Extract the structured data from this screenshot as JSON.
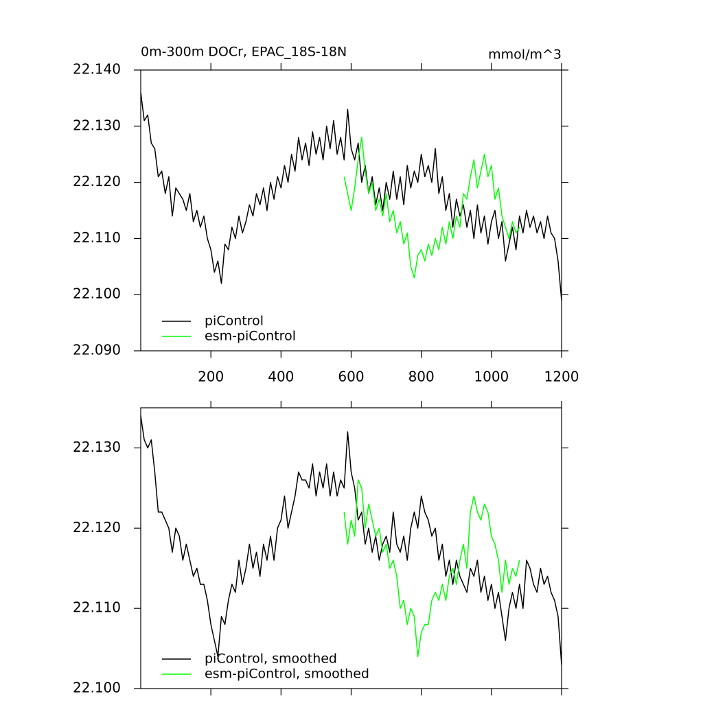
{
  "chart_data": [
    {
      "type": "line",
      "title": "0m-300m DOCr, EPAC_18S-18N",
      "units": "mmol/m^3",
      "x": [
        0,
        10,
        20,
        30,
        40,
        50,
        60,
        70,
        80,
        90,
        100,
        110,
        120,
        130,
        140,
        150,
        160,
        170,
        180,
        190,
        200,
        210,
        220,
        230,
        240,
        250,
        260,
        270,
        280,
        290,
        300,
        310,
        320,
        330,
        340,
        350,
        360,
        370,
        380,
        390,
        400,
        410,
        420,
        430,
        440,
        450,
        460,
        470,
        480,
        490,
        500,
        510,
        520,
        530,
        540,
        550,
        560,
        570,
        580,
        590,
        600,
        610,
        620,
        630,
        640,
        650,
        660,
        670,
        680,
        690,
        700,
        710,
        720,
        730,
        740,
        750,
        760,
        770,
        780,
        790,
        800,
        810,
        820,
        830,
        840,
        850,
        860,
        870,
        880,
        890,
        900,
        910,
        920,
        930,
        940,
        950,
        960,
        970,
        980,
        990,
        1000,
        1010,
        1020,
        1030,
        1040,
        1050,
        1060,
        1070,
        1080,
        1090,
        1100,
        1110,
        1120,
        1130,
        1140,
        1150,
        1160,
        1170,
        1180,
        1190,
        1200
      ],
      "series": [
        {
          "name": "piControl",
          "color": "#000000",
          "values": [
            22.136,
            22.131,
            22.132,
            22.127,
            22.126,
            22.121,
            22.122,
            22.118,
            22.121,
            22.114,
            22.119,
            22.118,
            22.117,
            22.115,
            22.118,
            22.113,
            22.115,
            22.112,
            22.114,
            22.11,
            22.108,
            22.104,
            22.106,
            22.102,
            22.109,
            22.108,
            22.112,
            22.11,
            22.114,
            22.111,
            22.113,
            22.116,
            22.114,
            22.118,
            22.116,
            22.119,
            22.115,
            22.12,
            22.117,
            22.121,
            22.119,
            22.123,
            22.12,
            22.125,
            22.122,
            22.128,
            22.124,
            22.127,
            22.123,
            22.129,
            22.125,
            22.128,
            22.124,
            22.13,
            22.126,
            22.131,
            22.125,
            22.128,
            22.124,
            22.133,
            22.126,
            22.124,
            22.127,
            22.12,
            22.123,
            22.118,
            22.121,
            22.116,
            22.119,
            22.115,
            22.12,
            22.117,
            22.122,
            22.117,
            22.121,
            22.116,
            22.123,
            22.119,
            22.122,
            22.12,
            22.125,
            22.121,
            22.123,
            22.12,
            22.126,
            22.118,
            22.121,
            22.115,
            22.118,
            22.112,
            22.117,
            22.114,
            22.116,
            22.112,
            22.115,
            22.11,
            22.116,
            22.111,
            22.114,
            22.109,
            22.113,
            22.115,
            22.11,
            22.113,
            22.106,
            22.109,
            22.112,
            22.108,
            22.114,
            22.111,
            22.115,
            22.112,
            22.114,
            22.111,
            22.113,
            22.11,
            22.114,
            22.111,
            22.11,
            22.106,
            22.099
          ]
        },
        {
          "name": "esm-piControl",
          "color": "#00ff00",
          "values": [
            null,
            null,
            null,
            null,
            null,
            null,
            null,
            null,
            null,
            null,
            null,
            null,
            null,
            null,
            null,
            null,
            null,
            null,
            null,
            null,
            null,
            null,
            null,
            null,
            null,
            null,
            null,
            null,
            null,
            null,
            null,
            null,
            null,
            null,
            null,
            null,
            null,
            null,
            null,
            null,
            null,
            null,
            null,
            null,
            null,
            null,
            null,
            null,
            null,
            null,
            null,
            null,
            null,
            null,
            null,
            null,
            null,
            null,
            22.121,
            22.118,
            22.115,
            22.119,
            22.124,
            22.128,
            22.122,
            22.118,
            22.12,
            22.115,
            22.117,
            22.114,
            22.118,
            22.113,
            22.115,
            22.111,
            22.113,
            22.109,
            22.111,
            22.105,
            22.103,
            22.107,
            22.108,
            22.106,
            22.109,
            22.107,
            22.11,
            22.108,
            22.112,
            22.109,
            22.113,
            22.11,
            22.114,
            22.112,
            22.118,
            22.117,
            22.121,
            22.124,
            22.119,
            22.122,
            22.125,
            22.121,
            22.123,
            22.117,
            22.119,
            22.114,
            22.112,
            22.11,
            22.113,
            22.111,
            22.112,
            null,
            null,
            null,
            null,
            null,
            null,
            null,
            null,
            null,
            null,
            null,
            null
          ]
        }
      ],
      "xlim": [
        0,
        1200
      ],
      "xticks": [
        200,
        400,
        600,
        800,
        1000,
        1200
      ],
      "ylim": [
        22.09,
        22.14
      ],
      "yticks": [
        {
          "value": 22.09,
          "label": "22.090"
        },
        {
          "value": 22.1,
          "label": "22.100"
        },
        {
          "value": 22.11,
          "label": "22.110"
        },
        {
          "value": 22.12,
          "label": "22.120"
        },
        {
          "value": 22.13,
          "label": "22.130"
        },
        {
          "value": 22.14,
          "label": "22.140"
        }
      ],
      "legend": "lower left"
    },
    {
      "type": "line",
      "x": [
        0,
        10,
        20,
        30,
        40,
        50,
        60,
        70,
        80,
        90,
        100,
        110,
        120,
        130,
        140,
        150,
        160,
        170,
        180,
        190,
        200,
        210,
        220,
        230,
        240,
        250,
        260,
        270,
        280,
        290,
        300,
        310,
        320,
        330,
        340,
        350,
        360,
        370,
        380,
        390,
        400,
        410,
        420,
        430,
        440,
        450,
        460,
        470,
        480,
        490,
        500,
        510,
        520,
        530,
        540,
        550,
        560,
        570,
        580,
        590,
        600,
        610,
        620,
        630,
        640,
        650,
        660,
        670,
        680,
        690,
        700,
        710,
        720,
        730,
        740,
        750,
        760,
        770,
        780,
        790,
        800,
        810,
        820,
        830,
        840,
        850,
        860,
        870,
        880,
        890,
        900,
        910,
        920,
        930,
        940,
        950,
        960,
        970,
        980,
        990,
        1000,
        1010,
        1020,
        1030,
        1040,
        1050,
        1060,
        1070,
        1080,
        1090,
        1100,
        1110,
        1120,
        1130,
        1140,
        1150,
        1160,
        1170,
        1180,
        1190,
        1200
      ],
      "series": [
        {
          "name": "piControl, smoothed",
          "color": "#000000",
          "values": [
            22.134,
            22.131,
            22.13,
            22.131,
            22.127,
            22.122,
            22.122,
            22.121,
            22.12,
            22.117,
            22.12,
            22.119,
            22.116,
            22.118,
            22.116,
            22.114,
            22.115,
            22.113,
            22.113,
            22.111,
            22.108,
            22.106,
            22.104,
            22.109,
            22.108,
            22.111,
            22.113,
            22.112,
            22.116,
            22.113,
            22.115,
            22.118,
            22.115,
            22.117,
            22.114,
            22.118,
            22.116,
            22.119,
            22.116,
            22.12,
            22.121,
            22.124,
            22.12,
            22.122,
            22.124,
            22.127,
            22.126,
            22.126,
            22.125,
            22.128,
            22.124,
            22.127,
            22.125,
            22.128,
            22.124,
            22.127,
            22.124,
            22.126,
            22.125,
            22.132,
            22.127,
            22.125,
            22.121,
            22.122,
            22.118,
            22.12,
            22.117,
            22.119,
            22.116,
            22.118,
            22.119,
            22.117,
            22.122,
            22.118,
            22.117,
            22.119,
            22.116,
            22.12,
            22.122,
            22.12,
            22.124,
            22.122,
            22.121,
            22.119,
            22.12,
            22.116,
            22.118,
            22.114,
            22.116,
            22.113,
            22.116,
            22.114,
            22.113,
            22.112,
            22.115,
            22.114,
            22.116,
            22.112,
            22.114,
            22.111,
            22.113,
            22.11,
            22.112,
            22.109,
            22.106,
            22.11,
            22.112,
            22.11,
            22.113,
            22.11,
            22.116,
            22.115,
            22.113,
            22.112,
            22.115,
            22.113,
            22.114,
            22.112,
            22.111,
            22.109,
            22.103
          ]
        },
        {
          "name": "esm-piControl, smoothed",
          "color": "#00ff00",
          "values": [
            null,
            null,
            null,
            null,
            null,
            null,
            null,
            null,
            null,
            null,
            null,
            null,
            null,
            null,
            null,
            null,
            null,
            null,
            null,
            null,
            null,
            null,
            null,
            null,
            null,
            null,
            null,
            null,
            null,
            null,
            null,
            null,
            null,
            null,
            null,
            null,
            null,
            null,
            null,
            null,
            null,
            null,
            null,
            null,
            null,
            null,
            null,
            null,
            null,
            null,
            null,
            null,
            null,
            null,
            null,
            null,
            null,
            null,
            22.122,
            22.118,
            22.121,
            22.119,
            22.126,
            22.125,
            22.12,
            22.123,
            22.121,
            22.119,
            22.12,
            22.117,
            22.118,
            22.115,
            22.116,
            22.114,
            22.11,
            22.111,
            22.108,
            22.11,
            22.109,
            22.104,
            22.107,
            22.108,
            22.108,
            22.111,
            22.112,
            22.111,
            22.113,
            22.111,
            22.114,
            22.115,
            22.113,
            22.116,
            22.118,
            22.115,
            22.122,
            22.124,
            22.122,
            22.121,
            22.123,
            22.122,
            22.119,
            22.118,
            22.116,
            22.112,
            22.116,
            22.113,
            22.115,
            22.114,
            22.116,
            null,
            null,
            null,
            null,
            null,
            null,
            null,
            null,
            null,
            null,
            null,
            null
          ]
        }
      ],
      "xlim": [
        0,
        1200
      ],
      "xticks": [
        200,
        400,
        600,
        800,
        1000,
        1200
      ],
      "xtick_labels": false,
      "ylim": [
        22.1,
        22.135
      ],
      "yticks": [
        {
          "value": 22.1,
          "label": "22.100"
        },
        {
          "value": 22.11,
          "label": "22.110"
        },
        {
          "value": 22.12,
          "label": "22.120"
        },
        {
          "value": 22.13,
          "label": "22.130"
        }
      ],
      "legend": "lower left"
    }
  ]
}
